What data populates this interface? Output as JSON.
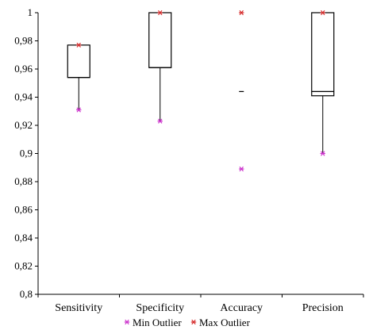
{
  "chart_data": {
    "type": "box",
    "categories": [
      "Sensitivity",
      "Specificity",
      "Accuracy",
      "Precision"
    ],
    "ylim": [
      0.8,
      1.0
    ],
    "yticks": [
      0.8,
      0.82,
      0.84,
      0.86,
      0.88,
      0.9,
      0.92,
      0.94,
      0.96,
      0.98,
      1.0
    ],
    "ytick_labels": [
      "0,8",
      "0,82",
      "0,84",
      "0,86",
      "0,88",
      "0,9",
      "0,92",
      "0,94",
      "0,96",
      "0,98",
      "1"
    ],
    "boxes": [
      {
        "category": "Sensitivity",
        "whisker_low": 0.931,
        "q1": 0.954,
        "median": 0.954,
        "q3": 0.977,
        "whisker_high": 0.977,
        "min_outlier": 0.931,
        "max_outlier": 0.977
      },
      {
        "category": "Specificity",
        "whisker_low": 0.923,
        "q1": 0.961,
        "median": 0.961,
        "q3": 1.0,
        "whisker_high": 1.0,
        "min_outlier": 0.923,
        "max_outlier": 1.0
      },
      {
        "category": "Accuracy",
        "whisker_low": null,
        "q1": null,
        "median": 0.944,
        "q3": null,
        "whisker_high": null,
        "min_outlier": 0.889,
        "max_outlier": 1.0
      },
      {
        "category": "Precision",
        "whisker_low": 0.9,
        "q1": 0.941,
        "median": 0.944,
        "q3": 1.0,
        "whisker_high": 1.0,
        "min_outlier": 0.9,
        "max_outlier": 1.0
      }
    ],
    "legend": {
      "position": "bottom",
      "entries": [
        {
          "label": "Min Outlier",
          "color": "#cc33cc",
          "marker": "asterisk"
        },
        {
          "label": "Max Outlier",
          "color": "#d62d2d",
          "marker": "asterisk"
        }
      ]
    },
    "grid": false
  }
}
